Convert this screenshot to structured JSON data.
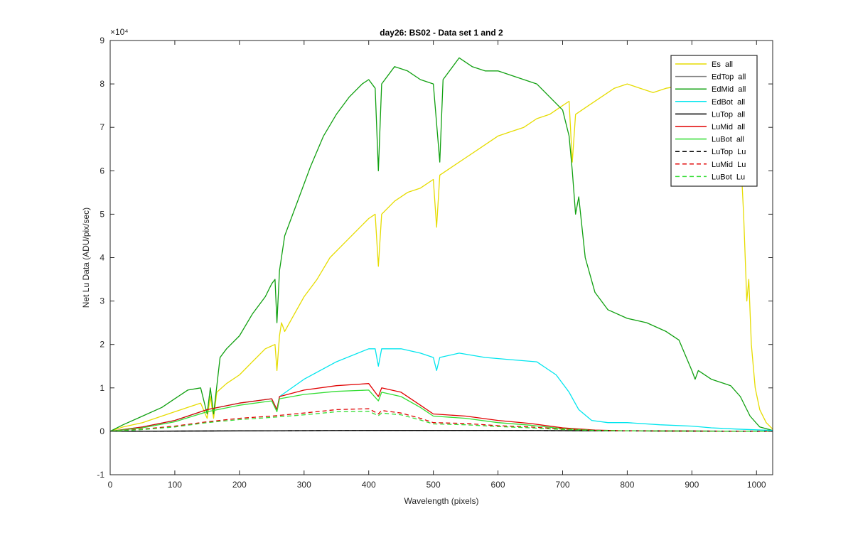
{
  "chart_data": {
    "type": "line",
    "title": "day26: BS02 - Data set 1 and 2",
    "xlabel": "Wavelength (pixels)",
    "ylabel": "Net Lu Data (ADU/pix/sec)",
    "xlim": [
      0,
      1025
    ],
    "ylim": [
      -1,
      9
    ],
    "y_exponent_label": "×10⁴",
    "x_ticks": [
      "0",
      "100",
      "200",
      "300",
      "400",
      "500",
      "600",
      "700",
      "800",
      "900",
      "1000"
    ],
    "y_ticks": [
      "-1",
      "0",
      "1",
      "2",
      "3",
      "4",
      "5",
      "6",
      "7",
      "8",
      "9"
    ],
    "legend_position": "top-right",
    "grid": false,
    "series": [
      {
        "name": "Es  all",
        "color": "#e6dc00",
        "dash": "solid",
        "points": [
          [
            0,
            0
          ],
          [
            20,
            0.1
          ],
          [
            50,
            0.2
          ],
          [
            80,
            0.35
          ],
          [
            100,
            0.45
          ],
          [
            120,
            0.55
          ],
          [
            140,
            0.65
          ],
          [
            150,
            0.3
          ],
          [
            155,
            0.8
          ],
          [
            160,
            0.3
          ],
          [
            165,
            0.9
          ],
          [
            180,
            1.1
          ],
          [
            200,
            1.3
          ],
          [
            220,
            1.6
          ],
          [
            240,
            1.9
          ],
          [
            255,
            2.0
          ],
          [
            258,
            1.4
          ],
          [
            262,
            2.2
          ],
          [
            265,
            2.5
          ],
          [
            270,
            2.3
          ],
          [
            285,
            2.7
          ],
          [
            300,
            3.1
          ],
          [
            320,
            3.5
          ],
          [
            340,
            4.0
          ],
          [
            360,
            4.3
          ],
          [
            380,
            4.6
          ],
          [
            400,
            4.9
          ],
          [
            410,
            5.0
          ],
          [
            415,
            3.8
          ],
          [
            420,
            5.0
          ],
          [
            440,
            5.3
          ],
          [
            460,
            5.5
          ],
          [
            480,
            5.6
          ],
          [
            500,
            5.8
          ],
          [
            505,
            4.7
          ],
          [
            510,
            5.9
          ],
          [
            530,
            6.1
          ],
          [
            550,
            6.3
          ],
          [
            570,
            6.5
          ],
          [
            600,
            6.8
          ],
          [
            620,
            6.9
          ],
          [
            640,
            7.0
          ],
          [
            660,
            7.2
          ],
          [
            680,
            7.3
          ],
          [
            700,
            7.5
          ],
          [
            710,
            7.6
          ],
          [
            715,
            6.2
          ],
          [
            720,
            7.3
          ],
          [
            740,
            7.5
          ],
          [
            760,
            7.7
          ],
          [
            780,
            7.9
          ],
          [
            800,
            8.0
          ],
          [
            820,
            7.9
          ],
          [
            840,
            7.8
          ],
          [
            860,
            7.9
          ],
          [
            880,
            7.95
          ],
          [
            900,
            7.9
          ],
          [
            930,
            7.85
          ],
          [
            960,
            7.9
          ],
          [
            975,
            6.5
          ],
          [
            980,
            5.0
          ],
          [
            985,
            3.0
          ],
          [
            988,
            3.5
          ],
          [
            992,
            2.0
          ],
          [
            998,
            1.0
          ],
          [
            1005,
            0.5
          ],
          [
            1015,
            0.2
          ],
          [
            1025,
            0.05
          ]
        ]
      },
      {
        "name": "EdTop  all",
        "color": "#808080",
        "dash": "solid",
        "points": [
          [
            0,
            0
          ],
          [
            200,
            0.01
          ],
          [
            400,
            0.02
          ],
          [
            600,
            0.02
          ],
          [
            800,
            0.01
          ],
          [
            1025,
            0
          ]
        ]
      },
      {
        "name": "EdMid  all",
        "color": "#10a010",
        "dash": "solid",
        "points": [
          [
            0,
            0
          ],
          [
            20,
            0.15
          ],
          [
            50,
            0.35
          ],
          [
            80,
            0.55
          ],
          [
            100,
            0.75
          ],
          [
            120,
            0.95
          ],
          [
            140,
            1.0
          ],
          [
            150,
            0.4
          ],
          [
            155,
            1.0
          ],
          [
            160,
            0.4
          ],
          [
            170,
            1.7
          ],
          [
            180,
            1.9
          ],
          [
            200,
            2.2
          ],
          [
            220,
            2.7
          ],
          [
            240,
            3.1
          ],
          [
            250,
            3.4
          ],
          [
            255,
            3.5
          ],
          [
            258,
            2.5
          ],
          [
            262,
            3.7
          ],
          [
            270,
            4.5
          ],
          [
            290,
            5.3
          ],
          [
            310,
            6.1
          ],
          [
            330,
            6.8
          ],
          [
            350,
            7.3
          ],
          [
            370,
            7.7
          ],
          [
            390,
            8.0
          ],
          [
            400,
            8.1
          ],
          [
            410,
            7.9
          ],
          [
            415,
            6.0
          ],
          [
            420,
            8.0
          ],
          [
            440,
            8.4
          ],
          [
            460,
            8.3
          ],
          [
            480,
            8.1
          ],
          [
            500,
            8.0
          ],
          [
            510,
            6.2
          ],
          [
            515,
            8.1
          ],
          [
            540,
            8.6
          ],
          [
            560,
            8.4
          ],
          [
            580,
            8.3
          ],
          [
            600,
            8.3
          ],
          [
            620,
            8.2
          ],
          [
            640,
            8.1
          ],
          [
            660,
            8.0
          ],
          [
            680,
            7.7
          ],
          [
            700,
            7.4
          ],
          [
            710,
            6.8
          ],
          [
            715,
            6.0
          ],
          [
            720,
            5.0
          ],
          [
            725,
            5.4
          ],
          [
            735,
            4.0
          ],
          [
            750,
            3.2
          ],
          [
            770,
            2.8
          ],
          [
            800,
            2.6
          ],
          [
            830,
            2.5
          ],
          [
            860,
            2.3
          ],
          [
            880,
            2.1
          ],
          [
            900,
            1.4
          ],
          [
            905,
            1.2
          ],
          [
            910,
            1.4
          ],
          [
            930,
            1.2
          ],
          [
            960,
            1.05
          ],
          [
            975,
            0.8
          ],
          [
            990,
            0.35
          ],
          [
            1005,
            0.1
          ],
          [
            1025,
            0.02
          ]
        ]
      },
      {
        "name": "EdBot  all",
        "color": "#00e5ee",
        "dash": "solid",
        "points": [
          [
            0,
            0
          ],
          [
            50,
            0.1
          ],
          [
            100,
            0.25
          ],
          [
            150,
            0.5
          ],
          [
            200,
            0.65
          ],
          [
            250,
            0.75
          ],
          [
            258,
            0.5
          ],
          [
            262,
            0.8
          ],
          [
            300,
            1.2
          ],
          [
            350,
            1.6
          ],
          [
            400,
            1.9
          ],
          [
            410,
            1.9
          ],
          [
            415,
            1.5
          ],
          [
            420,
            1.9
          ],
          [
            450,
            1.9
          ],
          [
            480,
            1.8
          ],
          [
            500,
            1.7
          ],
          [
            505,
            1.4
          ],
          [
            510,
            1.7
          ],
          [
            540,
            1.8
          ],
          [
            580,
            1.7
          ],
          [
            620,
            1.65
          ],
          [
            660,
            1.6
          ],
          [
            690,
            1.3
          ],
          [
            710,
            0.9
          ],
          [
            725,
            0.5
          ],
          [
            745,
            0.25
          ],
          [
            770,
            0.2
          ],
          [
            800,
            0.2
          ],
          [
            850,
            0.15
          ],
          [
            900,
            0.12
          ],
          [
            930,
            0.08
          ],
          [
            970,
            0.05
          ],
          [
            1025,
            0.02
          ]
        ]
      },
      {
        "name": "LuTop  all",
        "color": "#000000",
        "dash": "solid",
        "points": [
          [
            0,
            0
          ],
          [
            200,
            0.01
          ],
          [
            400,
            0.02
          ],
          [
            600,
            0.02
          ],
          [
            800,
            0.01
          ],
          [
            1025,
            0
          ]
        ]
      },
      {
        "name": "LuMid  all",
        "color": "#e00000",
        "dash": "solid",
        "points": [
          [
            0,
            0
          ],
          [
            50,
            0.1
          ],
          [
            100,
            0.25
          ],
          [
            150,
            0.5
          ],
          [
            200,
            0.65
          ],
          [
            250,
            0.75
          ],
          [
            258,
            0.5
          ],
          [
            262,
            0.8
          ],
          [
            300,
            0.95
          ],
          [
            350,
            1.05
          ],
          [
            400,
            1.1
          ],
          [
            415,
            0.8
          ],
          [
            420,
            1.0
          ],
          [
            450,
            0.9
          ],
          [
            480,
            0.6
          ],
          [
            500,
            0.4
          ],
          [
            550,
            0.35
          ],
          [
            600,
            0.25
          ],
          [
            650,
            0.18
          ],
          [
            700,
            0.08
          ],
          [
            750,
            0.03
          ],
          [
            800,
            0.01
          ],
          [
            1025,
            0
          ]
        ]
      },
      {
        "name": "LuBot  all",
        "color": "#33dd33",
        "dash": "solid",
        "points": [
          [
            0,
            0
          ],
          [
            50,
            0.08
          ],
          [
            100,
            0.22
          ],
          [
            150,
            0.45
          ],
          [
            200,
            0.6
          ],
          [
            250,
            0.7
          ],
          [
            258,
            0.45
          ],
          [
            262,
            0.75
          ],
          [
            300,
            0.85
          ],
          [
            350,
            0.92
          ],
          [
            400,
            0.95
          ],
          [
            415,
            0.7
          ],
          [
            420,
            0.9
          ],
          [
            450,
            0.8
          ],
          [
            480,
            0.55
          ],
          [
            500,
            0.35
          ],
          [
            550,
            0.3
          ],
          [
            600,
            0.2
          ],
          [
            650,
            0.14
          ],
          [
            700,
            0.06
          ],
          [
            750,
            0.02
          ],
          [
            800,
            0.01
          ],
          [
            1025,
            0
          ]
        ]
      },
      {
        "name": "LuTop  Lu",
        "color": "#000000",
        "dash": "dashed",
        "points": [
          [
            0,
            0
          ],
          [
            200,
            0.01
          ],
          [
            400,
            0.02
          ],
          [
            600,
            0.02
          ],
          [
            800,
            0.01
          ],
          [
            1025,
            0
          ]
        ]
      },
      {
        "name": "LuMid  Lu",
        "color": "#e00000",
        "dash": "dashed",
        "points": [
          [
            0,
            0
          ],
          [
            50,
            0.05
          ],
          [
            100,
            0.12
          ],
          [
            150,
            0.22
          ],
          [
            200,
            0.3
          ],
          [
            250,
            0.35
          ],
          [
            300,
            0.42
          ],
          [
            350,
            0.5
          ],
          [
            400,
            0.52
          ],
          [
            415,
            0.4
          ],
          [
            420,
            0.48
          ],
          [
            450,
            0.42
          ],
          [
            480,
            0.3
          ],
          [
            500,
            0.2
          ],
          [
            550,
            0.18
          ],
          [
            600,
            0.13
          ],
          [
            650,
            0.1
          ],
          [
            700,
            0.05
          ],
          [
            750,
            0.02
          ],
          [
            800,
            0.01
          ],
          [
            1025,
            0
          ]
        ]
      },
      {
        "name": "LuBot  Lu",
        "color": "#33dd33",
        "dash": "dashed",
        "points": [
          [
            0,
            0
          ],
          [
            50,
            0.04
          ],
          [
            100,
            0.1
          ],
          [
            150,
            0.2
          ],
          [
            200,
            0.27
          ],
          [
            250,
            0.32
          ],
          [
            300,
            0.38
          ],
          [
            350,
            0.45
          ],
          [
            400,
            0.46
          ],
          [
            415,
            0.36
          ],
          [
            420,
            0.42
          ],
          [
            450,
            0.38
          ],
          [
            480,
            0.26
          ],
          [
            500,
            0.17
          ],
          [
            550,
            0.15
          ],
          [
            600,
            0.11
          ],
          [
            650,
            0.08
          ],
          [
            700,
            0.04
          ],
          [
            750,
            0.02
          ],
          [
            800,
            0.01
          ],
          [
            1025,
            0
          ]
        ]
      }
    ]
  }
}
